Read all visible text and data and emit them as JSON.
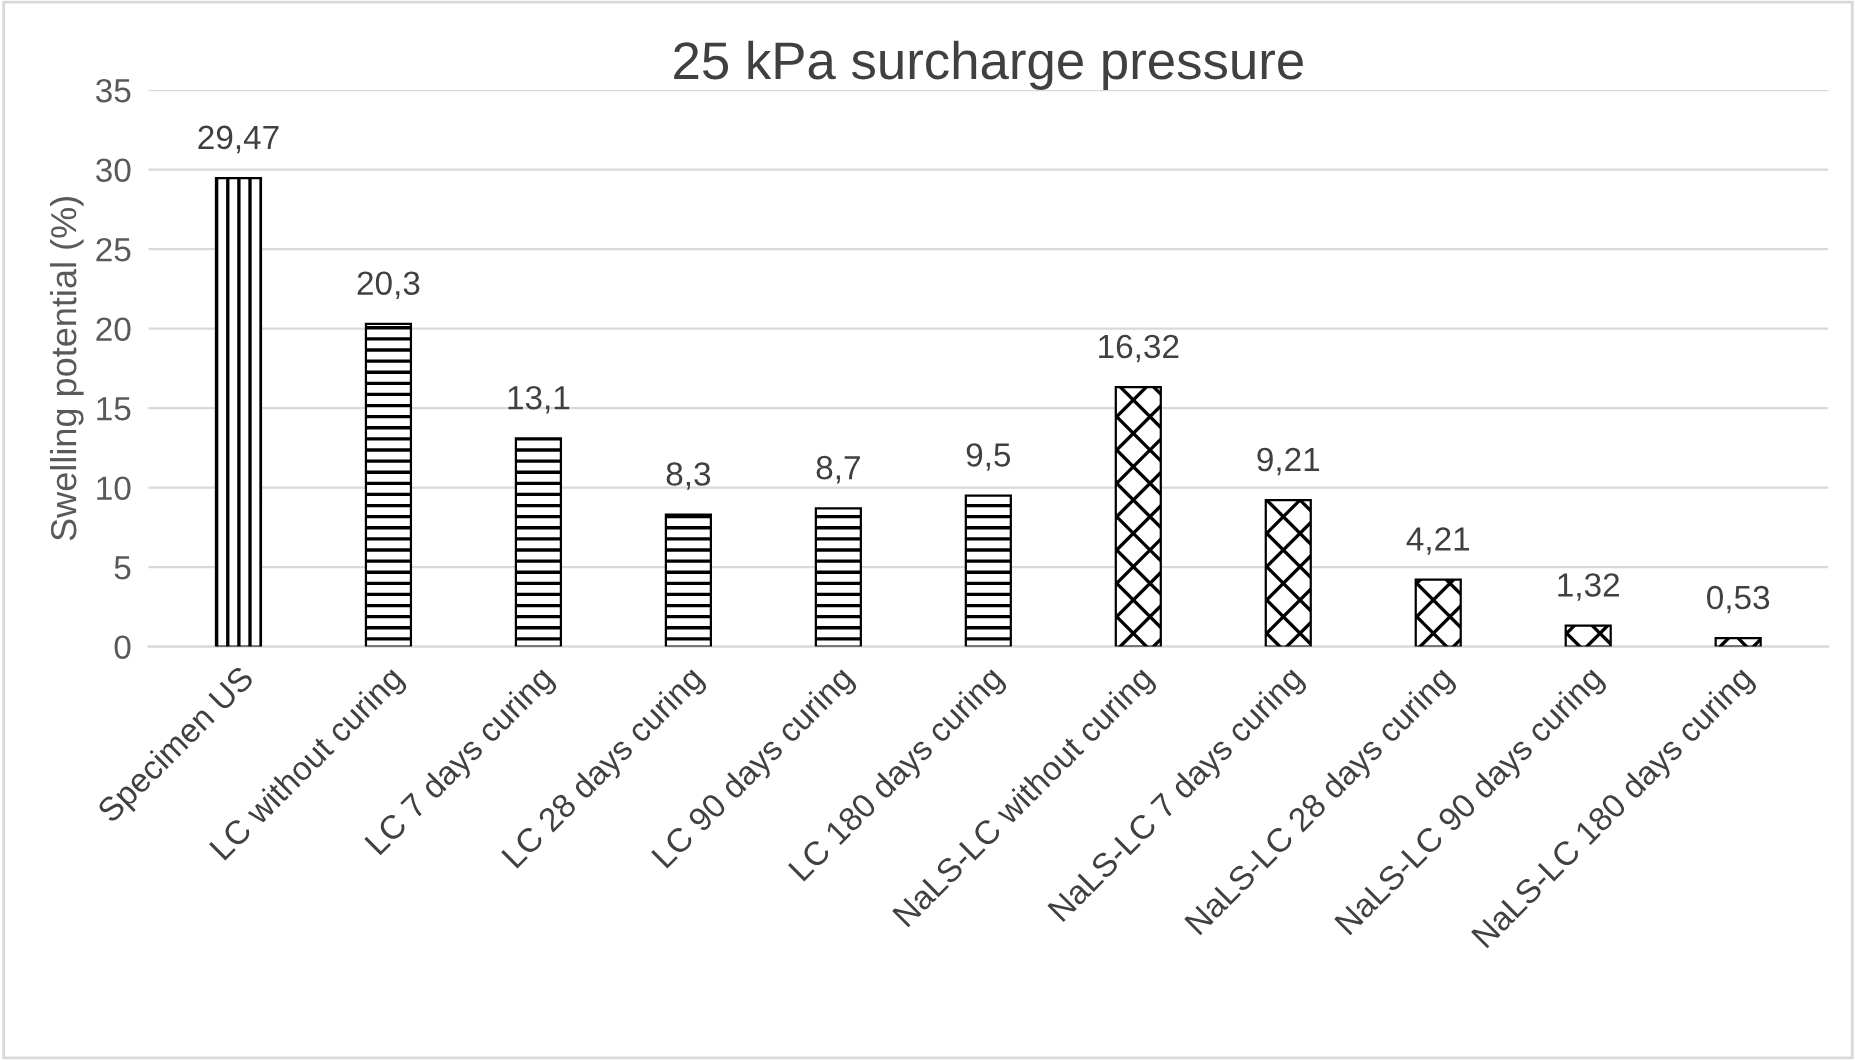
{
  "chart_data": {
    "type": "bar",
    "title": "25 kPa surcharge pressure",
    "ylabel": "Swelling potential (%)",
    "categories": [
      "Specimen US",
      "LC without curing",
      "LC 7 days curing",
      "LC 28 days curing",
      "LC 90 days curing",
      "LC 180 days curing",
      "NaLS-LC without curing",
      "NaLS-LC 7 days curing",
      "NaLS-LC 28 days curing",
      "NaLS-LC 90 days curing",
      "NaLS-LC 180 days curing"
    ],
    "series": [
      {
        "color": "#000000",
        "values": [
          29.47,
          null,
          null,
          null,
          null,
          null,
          null,
          null,
          null,
          null,
          null
        ],
        "value_labels": [
          "29,47",
          null,
          null,
          null,
          null,
          null,
          null,
          null,
          null,
          null,
          null
        ]
      },
      {
        "color": "#000000",
        "values": [
          null,
          20.3,
          13.1,
          8.3,
          8.7,
          9.5,
          null,
          null,
          null,
          null,
          null
        ],
        "value_labels": [
          null,
          "20,3",
          "13,1",
          "8,3",
          "8,7",
          "9,5",
          null,
          null,
          null,
          null,
          null
        ]
      },
      {
        "color": "#000000",
        "values": [
          null,
          null,
          null,
          null,
          null,
          null,
          16.32,
          9.21,
          4.21,
          1.32,
          0.53
        ],
        "value_labels": [
          null,
          null,
          null,
          null,
          null,
          null,
          "16,32",
          "9,21",
          "4,21",
          "1,32",
          "0,53"
        ]
      }
    ],
    "ylim": [
      0,
      35
    ],
    "yticks": [
      0,
      5,
      10,
      15,
      20,
      25,
      30,
      35
    ],
    "grid": "y",
    "legend": false
  }
}
